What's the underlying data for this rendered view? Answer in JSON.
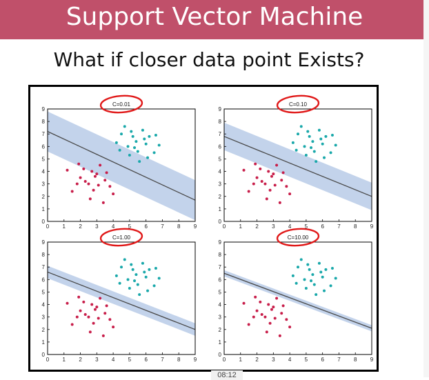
{
  "slide": {
    "title": "Support Vector Machine",
    "subtitle": "What if closer data point Exists?",
    "timestamp": "08:12"
  },
  "colors": {
    "banner": "#c0506a",
    "class_a": "#c81e4a",
    "class_b": "#19a8aa",
    "margin_band": "#a9c1e3",
    "annotation": "#e01818"
  },
  "chart_data": [
    {
      "type": "scatter",
      "title": "C=0.01",
      "xlim": [
        0,
        9
      ],
      "ylim": [
        0,
        9
      ],
      "x_ticks": [
        0,
        1,
        2,
        3,
        4,
        5,
        6,
        7,
        8,
        9
      ],
      "y_ticks": [
        0,
        1,
        2,
        3,
        4,
        5,
        6,
        7,
        8,
        9
      ],
      "decision_line": {
        "x": [
          0,
          9
        ],
        "y": [
          7.2,
          1.7
        ]
      },
      "margin_half_width": 1.6,
      "series": [
        {
          "values": [
            [
              1.2,
              4.1
            ],
            [
              2.0,
              3.5
            ],
            [
              2.5,
              3.0
            ],
            [
              3.0,
              3.8
            ],
            [
              3.5,
              3.3
            ],
            [
              2.8,
              2.5
            ],
            [
              1.8,
              3.0
            ],
            [
              3.2,
              4.5
            ],
            [
              2.2,
              4.2
            ],
            [
              3.8,
              2.8
            ],
            [
              4.0,
              2.2
            ],
            [
              1.5,
              2.4
            ],
            [
              2.6,
              1.8
            ],
            [
              3.4,
              1.5
            ],
            [
              2.9,
              3.6
            ],
            [
              2.3,
              3.2
            ],
            [
              3.1,
              2.9
            ],
            [
              1.9,
              4.6
            ],
            [
              3.6,
              3.9
            ],
            [
              2.7,
              4.0
            ]
          ]
        },
        {
          "values": [
            [
              4.9,
              6.0
            ],
            [
              5.5,
              5.6
            ],
            [
              6.0,
              6.2
            ],
            [
              4.5,
              7.0
            ],
            [
              5.2,
              6.8
            ],
            [
              6.5,
              5.5
            ],
            [
              5.8,
              7.3
            ],
            [
              4.2,
              6.3
            ],
            [
              6.2,
              6.8
            ],
            [
              5.0,
              5.3
            ],
            [
              5.6,
              4.8
            ],
            [
              6.8,
              6.1
            ],
            [
              4.7,
              7.6
            ],
            [
              5.4,
              6.4
            ],
            [
              6.1,
              5.1
            ],
            [
              5.9,
              6.6
            ],
            [
              4.4,
              5.7
            ],
            [
              5.1,
              7.2
            ],
            [
              6.6,
              6.9
            ],
            [
              5.3,
              5.9
            ]
          ]
        }
      ]
    },
    {
      "type": "scatter",
      "title": "C=0.10",
      "xlim": [
        0,
        9
      ],
      "ylim": [
        0,
        9
      ],
      "x_ticks": [
        0,
        1,
        2,
        3,
        4,
        5,
        6,
        7,
        8,
        9
      ],
      "y_ticks": [
        0,
        1,
        2,
        3,
        4,
        5,
        6,
        7,
        8,
        9
      ],
      "decision_line": {
        "x": [
          0,
          9
        ],
        "y": [
          6.8,
          2.0
        ]
      },
      "margin_half_width": 1.1,
      "series": [
        {
          "values": [
            [
              1.2,
              4.1
            ],
            [
              2.0,
              3.5
            ],
            [
              2.5,
              3.0
            ],
            [
              3.0,
              3.8
            ],
            [
              3.5,
              3.3
            ],
            [
              2.8,
              2.5
            ],
            [
              1.8,
              3.0
            ],
            [
              3.2,
              4.5
            ],
            [
              2.2,
              4.2
            ],
            [
              3.8,
              2.8
            ],
            [
              4.0,
              2.2
            ],
            [
              1.5,
              2.4
            ],
            [
              2.6,
              1.8
            ],
            [
              3.4,
              1.5
            ],
            [
              2.9,
              3.6
            ],
            [
              2.3,
              3.2
            ],
            [
              3.1,
              2.9
            ],
            [
              1.9,
              4.6
            ],
            [
              3.6,
              3.9
            ],
            [
              2.7,
              4.0
            ]
          ]
        },
        {
          "values": [
            [
              4.9,
              6.0
            ],
            [
              5.5,
              5.6
            ],
            [
              6.0,
              6.2
            ],
            [
              4.5,
              7.0
            ],
            [
              5.2,
              6.8
            ],
            [
              6.5,
              5.5
            ],
            [
              5.8,
              7.3
            ],
            [
              4.2,
              6.3
            ],
            [
              6.2,
              6.8
            ],
            [
              5.0,
              5.3
            ],
            [
              5.6,
              4.8
            ],
            [
              6.8,
              6.1
            ],
            [
              4.7,
              7.6
            ],
            [
              5.4,
              6.4
            ],
            [
              6.1,
              5.1
            ],
            [
              5.9,
              6.6
            ],
            [
              4.4,
              5.7
            ],
            [
              5.1,
              7.2
            ],
            [
              6.6,
              6.9
            ],
            [
              5.3,
              5.9
            ]
          ]
        }
      ]
    },
    {
      "type": "scatter",
      "title": "C=1.00",
      "xlim": [
        0,
        9
      ],
      "ylim": [
        0,
        9
      ],
      "x_ticks": [
        0,
        1,
        2,
        3,
        4,
        5,
        6,
        7,
        8,
        9
      ],
      "y_ticks": [
        0,
        1,
        2,
        3,
        4,
        5,
        6,
        7,
        8,
        9
      ],
      "decision_line": {
        "x": [
          0,
          9
        ],
        "y": [
          6.6,
          2.0
        ]
      },
      "margin_half_width": 0.5,
      "series": [
        {
          "values": [
            [
              1.2,
              4.1
            ],
            [
              2.0,
              3.5
            ],
            [
              2.5,
              3.0
            ],
            [
              3.0,
              3.8
            ],
            [
              3.5,
              3.3
            ],
            [
              2.8,
              2.5
            ],
            [
              1.8,
              3.0
            ],
            [
              3.2,
              4.5
            ],
            [
              2.2,
              4.2
            ],
            [
              3.8,
              2.8
            ],
            [
              4.0,
              2.2
            ],
            [
              1.5,
              2.4
            ],
            [
              2.6,
              1.8
            ],
            [
              3.4,
              1.5
            ],
            [
              2.9,
              3.6
            ],
            [
              2.3,
              3.2
            ],
            [
              3.1,
              2.9
            ],
            [
              1.9,
              4.6
            ],
            [
              3.6,
              3.9
            ],
            [
              2.7,
              4.0
            ]
          ]
        },
        {
          "values": [
            [
              4.9,
              6.0
            ],
            [
              5.5,
              5.6
            ],
            [
              6.0,
              6.2
            ],
            [
              4.5,
              7.0
            ],
            [
              5.2,
              6.8
            ],
            [
              6.5,
              5.5
            ],
            [
              5.8,
              7.3
            ],
            [
              4.2,
              6.3
            ],
            [
              6.2,
              6.8
            ],
            [
              5.0,
              5.3
            ],
            [
              5.6,
              4.8
            ],
            [
              6.8,
              6.1
            ],
            [
              4.7,
              7.6
            ],
            [
              5.4,
              6.4
            ],
            [
              6.1,
              5.1
            ],
            [
              5.9,
              6.6
            ],
            [
              4.4,
              5.7
            ],
            [
              5.1,
              7.2
            ],
            [
              6.6,
              6.9
            ],
            [
              5.3,
              5.9
            ]
          ]
        }
      ]
    },
    {
      "type": "scatter",
      "title": "C=10.00",
      "xlim": [
        0,
        9
      ],
      "ylim": [
        0,
        9
      ],
      "x_ticks": [
        0,
        1,
        2,
        3,
        4,
        5,
        6,
        7,
        8,
        9
      ],
      "y_ticks": [
        0,
        1,
        2,
        3,
        4,
        5,
        6,
        7,
        8,
        9
      ],
      "decision_line": {
        "x": [
          0,
          9
        ],
        "y": [
          6.5,
          2.1
        ]
      },
      "margin_half_width": 0.25,
      "series": [
        {
          "values": [
            [
              1.2,
              4.1
            ],
            [
              2.0,
              3.5
            ],
            [
              2.5,
              3.0
            ],
            [
              3.0,
              3.8
            ],
            [
              3.5,
              3.3
            ],
            [
              2.8,
              2.5
            ],
            [
              1.8,
              3.0
            ],
            [
              3.2,
              4.5
            ],
            [
              2.2,
              4.2
            ],
            [
              3.8,
              2.8
            ],
            [
              4.0,
              2.2
            ],
            [
              1.5,
              2.4
            ],
            [
              2.6,
              1.8
            ],
            [
              3.4,
              1.5
            ],
            [
              2.9,
              3.6
            ],
            [
              2.3,
              3.2
            ],
            [
              3.1,
              2.9
            ],
            [
              1.9,
              4.6
            ],
            [
              3.6,
              3.9
            ],
            [
              2.7,
              4.0
            ]
          ]
        },
        {
          "values": [
            [
              4.9,
              6.0
            ],
            [
              5.5,
              5.6
            ],
            [
              6.0,
              6.2
            ],
            [
              4.5,
              7.0
            ],
            [
              5.2,
              6.8
            ],
            [
              6.5,
              5.5
            ],
            [
              5.8,
              7.3
            ],
            [
              4.2,
              6.3
            ],
            [
              6.2,
              6.8
            ],
            [
              5.0,
              5.3
            ],
            [
              5.6,
              4.8
            ],
            [
              6.8,
              6.1
            ],
            [
              4.7,
              7.6
            ],
            [
              5.4,
              6.4
            ],
            [
              6.1,
              5.1
            ],
            [
              5.9,
              6.6
            ],
            [
              4.4,
              5.7
            ],
            [
              5.1,
              7.2
            ],
            [
              6.6,
              6.9
            ],
            [
              5.3,
              5.9
            ]
          ]
        }
      ]
    }
  ]
}
